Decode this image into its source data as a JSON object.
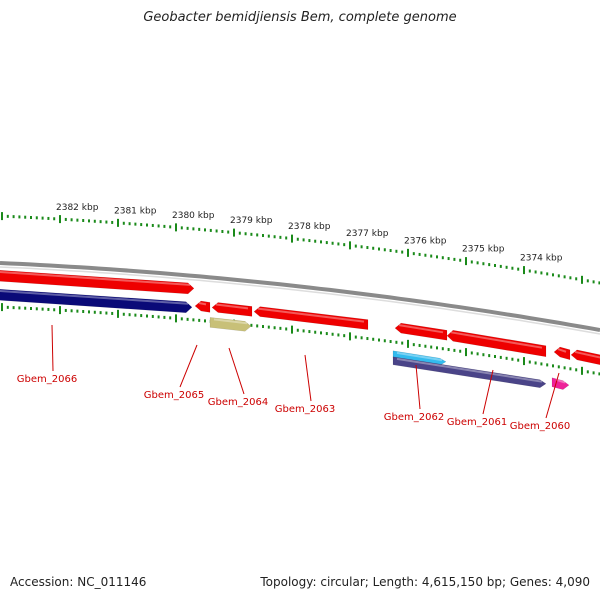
{
  "title": "Geobacter bemidjiensis Bem, complete genome",
  "footer": {
    "accession": "Accession: NC_011146",
    "summary": "Topology: circular; Length: 4,615,150 bp; Genes: 4,090"
  },
  "colors": {
    "tick": "#1a8a1a",
    "backbone": "#8a8a8a",
    "gene_red": "#ee0000",
    "gene_navy": "#0a0a78",
    "gene_olive": "#c8c078",
    "gene_cyan": "#33bbee",
    "gene_purple": "#4a4488",
    "gene_magenta": "#ee2299",
    "label": "#cc0000"
  },
  "ruler_labels": [
    "2382 kbp",
    "2381 kbp",
    "2380 kbp",
    "2379 kbp",
    "2378 kbp",
    "2377 kbp",
    "2376 kbp",
    "2375 kbp",
    "2374 kbp"
  ],
  "gene_labels": [
    "Gbem_2066",
    "Gbem_2065",
    "Gbem_2064",
    "Gbem_2063",
    "Gbem_2062",
    "Gbem_2061",
    "Gbem_2060"
  ]
}
